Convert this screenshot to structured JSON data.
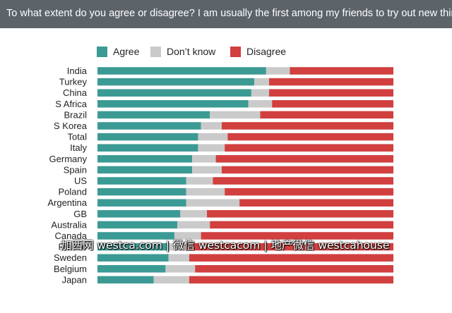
{
  "header": {
    "title": "To what extent do you agree or disagree? I am usually the first among my friends to try out new things"
  },
  "colors": {
    "agree": "#3c9a94",
    "dont_know": "#cacaca",
    "disagree": "#d13f3f",
    "header_bg": "#5c646a"
  },
  "watermark": "加西网 westca.com | 微信 westcacom | 地产微信 westcahouse",
  "chart_data": {
    "type": "bar",
    "orientation": "horizontal",
    "stacked": true,
    "title": "To what extent do you agree or disagree? I am usually the first among my friends to try out new things",
    "xlabel": "",
    "ylabel": "",
    "xlim": [
      0,
      100
    ],
    "grid": false,
    "legend_position": "top-left",
    "categories": [
      "India",
      "Turkey",
      "China",
      "S Africa",
      "Brazil",
      "S Korea",
      "Total",
      "Italy",
      "Germany",
      "Spain",
      "US",
      "Poland",
      "Argentina",
      "GB",
      "Australia",
      "Canada",
      "France",
      "Sweden",
      "Belgium",
      "Japan"
    ],
    "series": [
      {
        "name": "Agree",
        "values": [
          57,
          53,
          52,
          51,
          38,
          35,
          34,
          34,
          32,
          32,
          30,
          30,
          30,
          28,
          27,
          26,
          24,
          24,
          23,
          19
        ]
      },
      {
        "name": "Don’t know",
        "values": [
          8,
          5,
          6,
          8,
          17,
          7,
          10,
          9,
          8,
          10,
          9,
          13,
          18,
          9,
          11,
          9,
          6,
          7,
          10,
          12
        ]
      },
      {
        "name": "Disagree",
        "values": [
          35,
          42,
          42,
          41,
          45,
          58,
          56,
          57,
          60,
          58,
          61,
          57,
          52,
          63,
          62,
          65,
          70,
          69,
          67,
          69
        ]
      }
    ]
  }
}
